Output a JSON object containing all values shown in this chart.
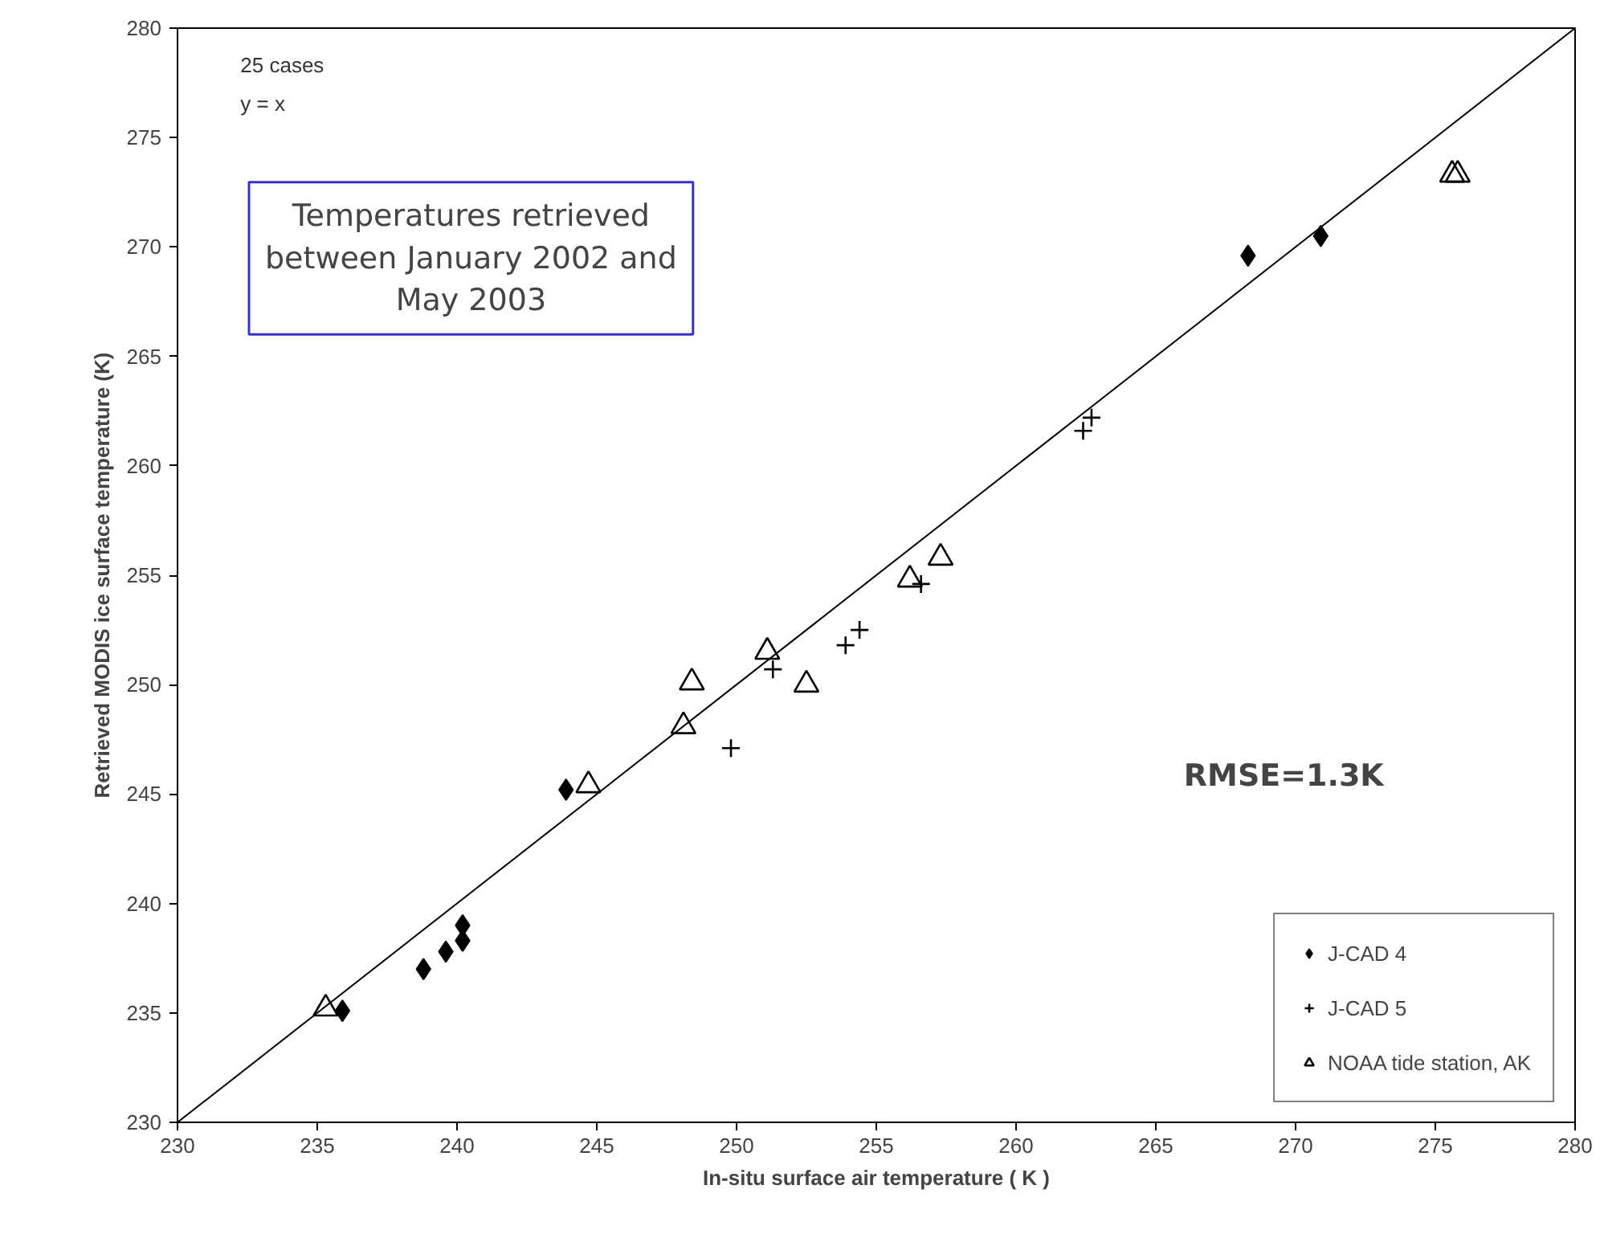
{
  "chart_data": {
    "type": "scatter",
    "xlabel": "In-situ surface air temperature ( K )",
    "ylabel": "Retrieved MODIS ice surface temperature (K)",
    "xlim": [
      230,
      280
    ],
    "ylim": [
      230,
      280
    ],
    "xticks": [
      230,
      235,
      240,
      245,
      250,
      255,
      260,
      265,
      270,
      275,
      280
    ],
    "yticks": [
      230,
      235,
      240,
      245,
      250,
      255,
      260,
      265,
      270,
      275,
      280
    ],
    "grid": false,
    "legend": "bottom right",
    "annotations": [
      "25 cases",
      "y = x",
      "Temperatures retrieved between January 2002 and May 2003",
      "RMSE=1.3K"
    ],
    "series": [
      {
        "type": "line",
        "color": "#000000",
        "marker": "none",
        "x": [
          230,
          280
        ],
        "values": [
          230,
          280
        ]
      },
      {
        "name": "J-CAD 4",
        "color": "#000000",
        "marker": "diamond",
        "x": [
          235.9,
          238.8,
          239.6,
          240.2,
          240.2,
          243.9,
          268.3,
          270.9
        ],
        "values": [
          235.1,
          237.0,
          237.8,
          238.3,
          239.0,
          245.2,
          269.6,
          270.5
        ]
      },
      {
        "name": "J-CAD 5",
        "color": "#000000",
        "marker": "cross",
        "x": [
          249.8,
          251.3,
          253.9,
          254.4,
          256.6,
          262.4,
          262.7
        ],
        "values": [
          247.1,
          250.7,
          251.8,
          252.5,
          254.6,
          261.6,
          262.2
        ]
      },
      {
        "name": "NOAA tide station, AK",
        "color": "#000000",
        "marker": "triangle",
        "x": [
          235.3,
          244.7,
          248.1,
          248.4,
          251.1,
          252.5,
          256.2,
          257.3,
          275.6,
          275.8
        ],
        "values": [
          235.2,
          245.4,
          248.1,
          250.1,
          251.5,
          250.0,
          254.8,
          255.8,
          273.3,
          273.3
        ]
      }
    ]
  }
}
